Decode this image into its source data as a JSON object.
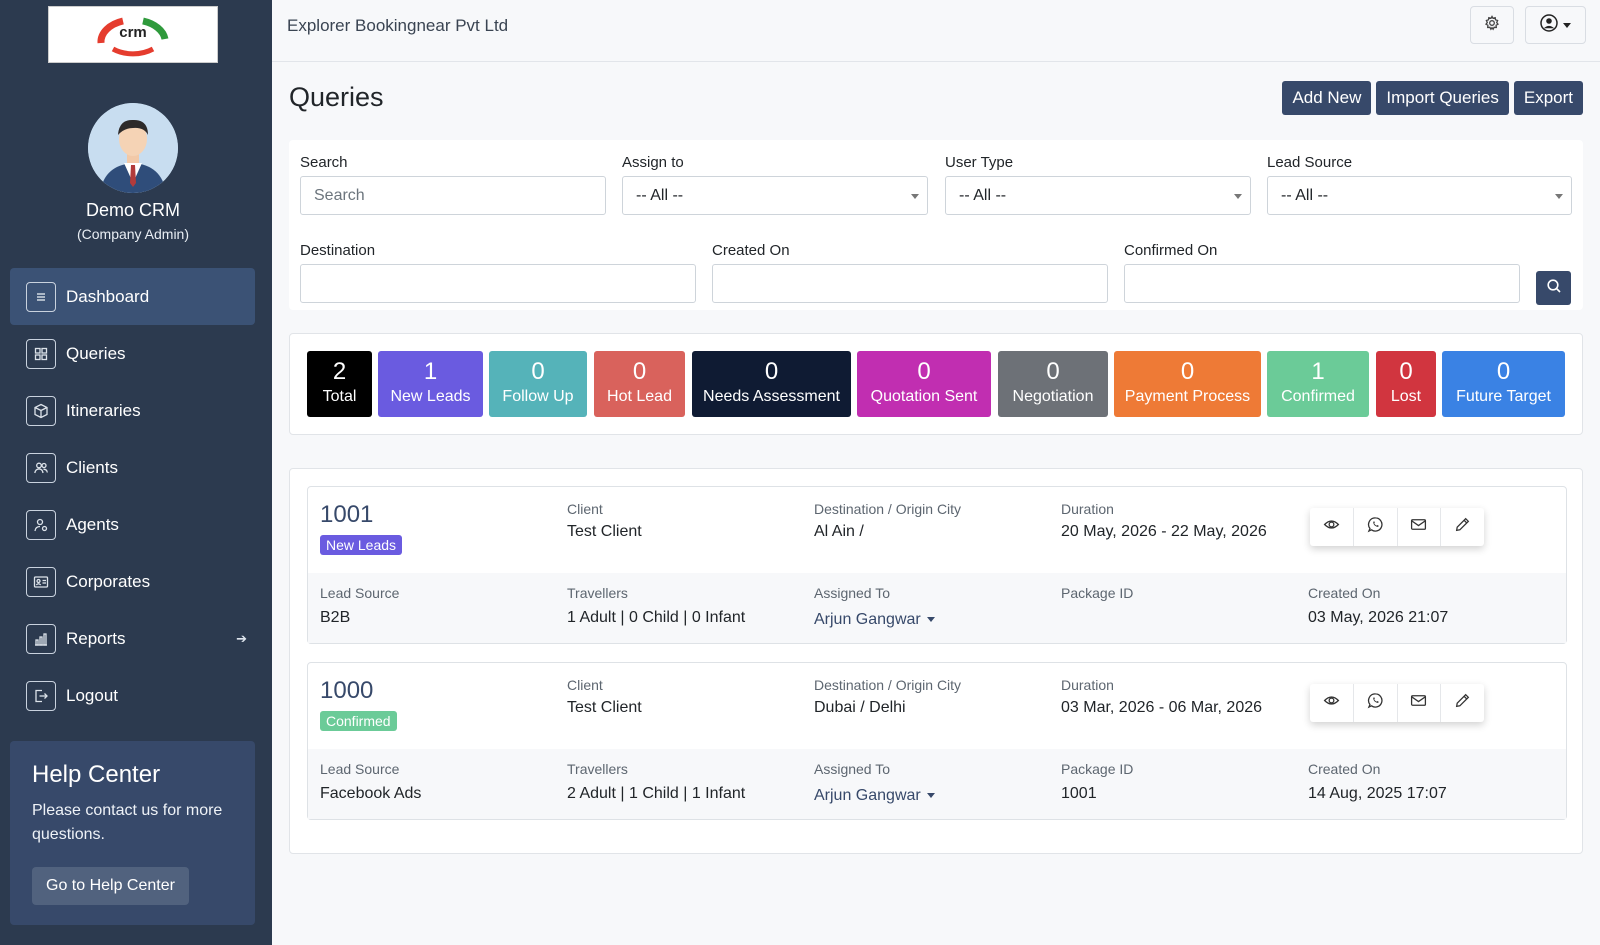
{
  "sidebar": {
    "logo_text": "crm",
    "profile_name": "Demo CRM",
    "profile_role": "(Company Admin)",
    "items": [
      {
        "label": "Dashboard",
        "icon": "list-icon"
      },
      {
        "label": "Queries",
        "icon": "grid-icon"
      },
      {
        "label": "Itineraries",
        "icon": "box-icon"
      },
      {
        "label": "Clients",
        "icon": "users-icon"
      },
      {
        "label": "Agents",
        "icon": "user-cog-icon"
      },
      {
        "label": "Corporates",
        "icon": "id-card-icon"
      },
      {
        "label": "Reports",
        "icon": "bar-chart-icon"
      },
      {
        "label": "Logout",
        "icon": "logout-icon"
      }
    ],
    "help": {
      "title": "Help Center",
      "text": "Please contact us for more questions.",
      "button": "Go to Help Center"
    }
  },
  "header": {
    "company": "Explorer Bookingnear Pvt Ltd"
  },
  "page": {
    "title": "Queries",
    "actions": {
      "add": "Add New",
      "import": "Import Queries",
      "export": "Export"
    }
  },
  "filters": {
    "search_label": "Search",
    "search_placeholder": "Search",
    "assign_label": "Assign to",
    "assign_value": "-- All --",
    "user_type_label": "User Type",
    "user_type_value": "-- All --",
    "lead_source_label": "Lead Source",
    "lead_source_value": "-- All --",
    "destination_label": "Destination",
    "created_label": "Created On",
    "confirmed_label": "Confirmed On"
  },
  "stats": [
    {
      "count": "2",
      "label": "Total",
      "color": "#000000"
    },
    {
      "count": "1",
      "label": "New Leads",
      "color": "#6a5be0"
    },
    {
      "count": "0",
      "label": "Follow Up",
      "color": "#55b3b9"
    },
    {
      "count": "0",
      "label": "Hot Lead",
      "color": "#d9625c"
    },
    {
      "count": "0",
      "label": "Needs Assessment",
      "color": "#0f1b33"
    },
    {
      "count": "0",
      "label": "Quotation Sent",
      "color": "#c12eb1"
    },
    {
      "count": "0",
      "label": "Negotiation",
      "color": "#6d7177"
    },
    {
      "count": "0",
      "label": "Payment Process",
      "color": "#ee7a36"
    },
    {
      "count": "1",
      "label": "Confirmed",
      "color": "#6bcb98"
    },
    {
      "count": "0",
      "label": "Lost",
      "color": "#d1353f"
    },
    {
      "count": "0",
      "label": "Future Target",
      "color": "#3a82e4"
    }
  ],
  "labels": {
    "client": "Client",
    "destination": "Destination / Origin City",
    "duration": "Duration",
    "lead_source": "Lead Source",
    "travellers": "Travellers",
    "assigned_to": "Assigned To",
    "package_id": "Package ID",
    "created_on": "Created On"
  },
  "queries": [
    {
      "id": "1001",
      "status": "New Leads",
      "status_color": "#6a5be0",
      "client": "Test Client",
      "destination": "Al Ain /",
      "duration": "20 May, 2026 - 22 May, 2026",
      "lead_source": "B2B",
      "travellers": "1 Adult | 0 Child | 0 Infant",
      "assigned_to": "Arjun Gangwar",
      "package_id": "",
      "created_on": "03 May, 2026 21:07"
    },
    {
      "id": "1000",
      "status": "Confirmed",
      "status_color": "#6bcb98",
      "client": "Test Client",
      "destination": "Dubai / Delhi",
      "duration": "03 Mar, 2026 - 06 Mar, 2026",
      "lead_source": "Facebook Ads",
      "travellers": "2 Adult | 1 Child | 1 Infant",
      "assigned_to": "Arjun Gangwar",
      "package_id": "1001",
      "created_on": "14 Aug, 2025 17:07"
    }
  ]
}
